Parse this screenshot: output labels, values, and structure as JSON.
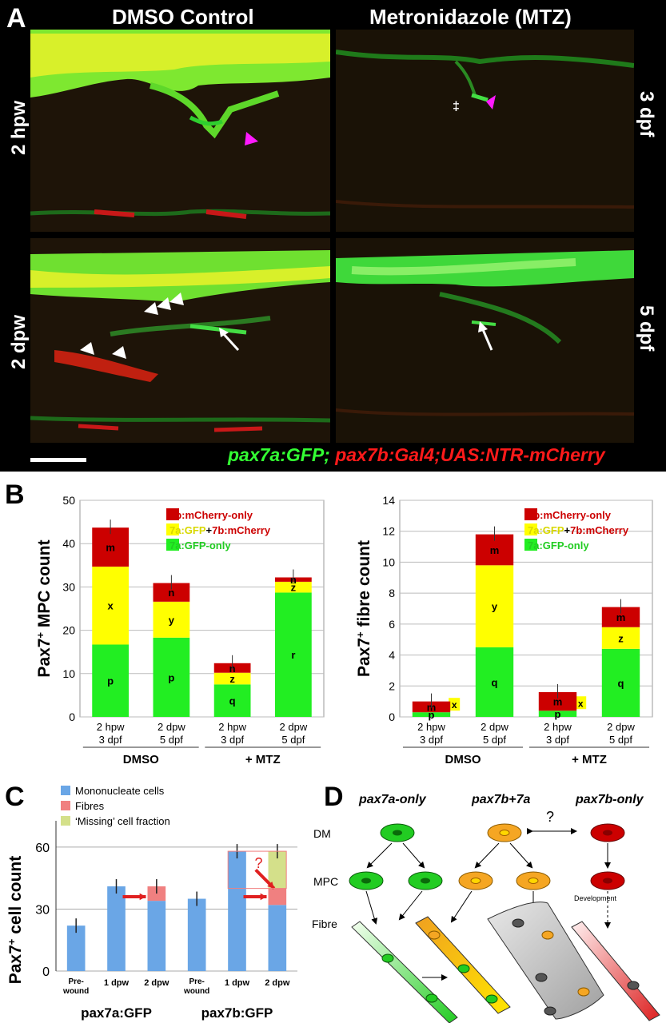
{
  "panelA": {
    "letter": "A",
    "col_left": "DMSO Control",
    "col_right": "Metronidazole (MTZ)",
    "row1_left": "2 hpw",
    "row1_right": "3 dpf",
    "row2_left": "2 dpw",
    "row2_right": "5 dpf",
    "dagger": "‡",
    "legend_green": "pax7a:GFP;",
    "legend_red": " pax7b:Gal4;UAS:NTR-mCherry",
    "colors": {
      "green": "#33ff33",
      "red": "#ff1a1a",
      "yellow": "#e6ff2a",
      "magenta": "#ff1aff"
    }
  },
  "panelB": {
    "letter": "B",
    "chart_data": [
      {
        "type": "bar",
        "ylabel": "Pax7+ MPC count",
        "ylim": [
          0,
          50
        ],
        "yticks": [
          0,
          10,
          20,
          30,
          40,
          50
        ],
        "categories": [
          "2 hpw\n3 dpf",
          "2 dpw\n5 dpf",
          "2 hpw\n3 dpf",
          "2 dpw\n5 dpf"
        ],
        "groups": [
          "DMSO",
          "+ MTZ"
        ],
        "series": [
          {
            "name": "7a:GFP-only",
            "values": [
              16.7,
              18.3,
              7.5,
              28.7
            ],
            "letters": [
              "p",
              "p",
              "q",
              "r"
            ],
            "color": "#22ee22"
          },
          {
            "name": "7a:GFP+7b:mCherry",
            "values": [
              18.0,
              8.3,
              2.7,
              2.5
            ],
            "letters": [
              "x",
              "y",
              "z",
              "z"
            ],
            "color": "#ffff00"
          },
          {
            "name": "7b:mCherry-only",
            "values": [
              9.0,
              4.3,
              2.2,
              1.0
            ],
            "letters": [
              "m",
              "n",
              "n",
              "n"
            ],
            "color": "#cc0000"
          }
        ],
        "legend": [
          "7b:mCherry-only",
          "7a:GFP+7b:mCherry",
          "7a:GFP-only"
        ],
        "legend_position": "top-right",
        "grid": true
      },
      {
        "type": "bar",
        "ylabel": "Pax7+ fibre count",
        "ylim": [
          0,
          14
        ],
        "yticks": [
          0,
          2,
          4,
          6,
          8,
          10,
          12,
          14
        ],
        "categories": [
          "2 hpw\n3 dpf",
          "2 dpw\n5 dpf",
          "2 hpw\n3 dpf",
          "2 dpw\n5 dpf"
        ],
        "groups": [
          "DMSO",
          "+ MTZ"
        ],
        "series": [
          {
            "name": "7a:GFP-only",
            "values": [
              0.3,
              4.5,
              0.4,
              4.4
            ],
            "letters": [
              "p",
              "q",
              "p",
              "q"
            ],
            "color": "#22ee22"
          },
          {
            "name": "7a:GFP+7b:mCherry",
            "values": [
              0,
              5.3,
              0,
              1.4
            ],
            "letters": [
              "x",
              "y",
              "x",
              "z"
            ],
            "color": "#ffff00"
          },
          {
            "name": "7b:mCherry-only",
            "values": [
              0.7,
              2.0,
              1.2,
              1.3
            ],
            "letters": [
              "m",
              "m",
              "m",
              "m"
            ],
            "color": "#cc0000"
          }
        ],
        "legend": [
          "7b:mCherry-only",
          "7a:GFP+7b:mCherry",
          "7a:GFP-only"
        ],
        "legend_position": "top-right",
        "grid": true
      }
    ]
  },
  "panelC": {
    "letter": "C",
    "chart_data": {
      "type": "bar",
      "ylabel": "Pax7+ cell count",
      "ylim": [
        0,
        65
      ],
      "yticks": [
        0,
        30,
        60
      ],
      "categories": [
        "Pre-wound",
        "1 dpw",
        "2 dpw",
        "Pre-wound",
        "1 dpw",
        "2 dpw"
      ],
      "groups": [
        "pax7a:GFP",
        "pax7b:GFP"
      ],
      "series": [
        {
          "name": "Mononucleate cells",
          "values": [
            22,
            41,
            34,
            35,
            58,
            32
          ],
          "color": "#6aa6e6"
        },
        {
          "name": "Fibres",
          "values": [
            0,
            0,
            7,
            0,
            0,
            8
          ],
          "color": "#f08080"
        },
        {
          "name": "‘Missing’ cell fraction",
          "values": [
            0,
            0,
            0,
            0,
            0,
            18
          ],
          "color": "#d4e08a"
        }
      ],
      "legend_position": "top-left",
      "annotation": "?"
    }
  },
  "panelD": {
    "letter": "D",
    "col1": "pax7a-only",
    "col2": "pax7b+7a",
    "col3": "pax7b-only",
    "row_dm": "DM",
    "row_mpc": "MPC",
    "row_fibre": "Fibre",
    "question": "?",
    "development": "Development",
    "colors": {
      "green": "#22cc22",
      "orange": "#f5a623",
      "red": "#cc0000",
      "grey": "#888888"
    }
  }
}
